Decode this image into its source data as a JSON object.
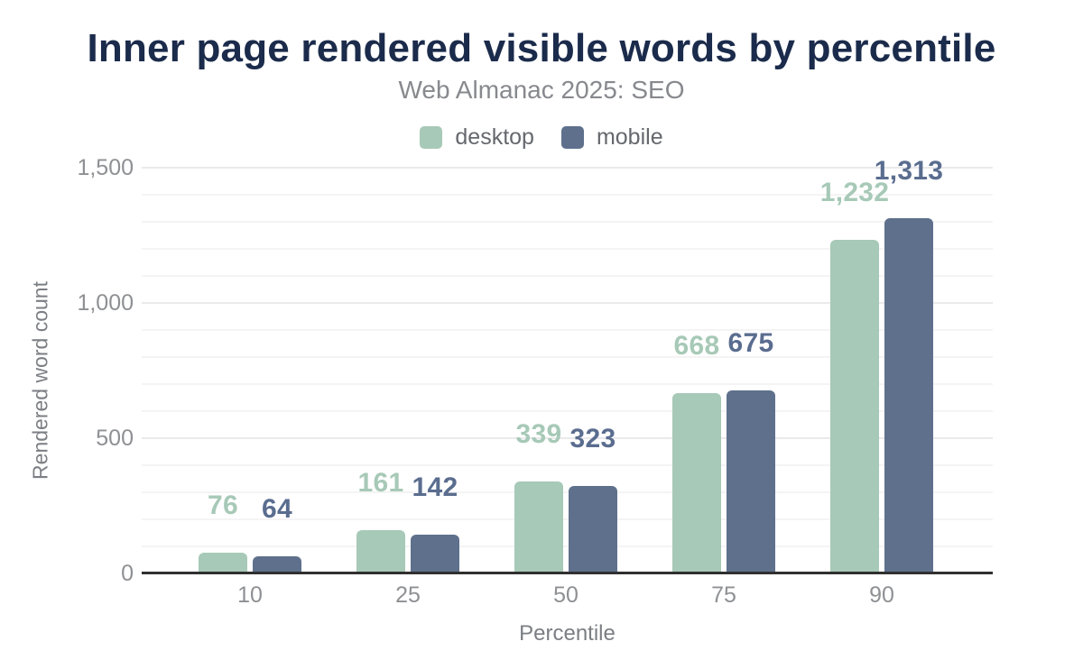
{
  "header": {
    "title": "Inner page rendered visible words by percentile",
    "subtitle": "Web Almanac 2025: SEO"
  },
  "legend": {
    "items": [
      {
        "label": "desktop",
        "color": "#a7c9b7"
      },
      {
        "label": "mobile",
        "color": "#5e708c"
      }
    ]
  },
  "chart_data": {
    "type": "bar",
    "title": "Inner page rendered visible words by percentile",
    "subtitle": "Web Almanac 2025: SEO",
    "categories": [
      "10",
      "25",
      "50",
      "75",
      "90"
    ],
    "series": [
      {
        "name": "desktop",
        "color": "#a7c9b7",
        "label_color": "#a7c9b7",
        "values": [
          76,
          161,
          339,
          668,
          1232
        ],
        "value_labels": [
          "76",
          "161",
          "339",
          "668",
          "1,232"
        ]
      },
      {
        "name": "mobile",
        "color": "#5e708c",
        "label_color": "#5a6d8f",
        "values": [
          64,
          142,
          323,
          675,
          1313
        ],
        "value_labels": [
          "64",
          "142",
          "323",
          "675",
          "1,313"
        ]
      }
    ],
    "xlabel": "Percentile",
    "ylabel": "Rendered word count",
    "ylim": [
      0,
      1500
    ],
    "yticks": [
      {
        "value": 0,
        "label": "0"
      },
      {
        "value": 500,
        "label": "500"
      },
      {
        "value": 1000,
        "label": "1,000"
      },
      {
        "value": 1500,
        "label": "1,500"
      }
    ],
    "grid": {
      "horizontal": true,
      "minor_step": 100,
      "major_step": 500
    },
    "legend_position": "top",
    "colors": {
      "title": "#1b2b4b",
      "subtitle": "#87898e",
      "legend_text": "#65686d",
      "tick_label": "#8e9093",
      "axis_title": "#7b7e83",
      "axis_line": "#303030",
      "gridline_minor": "#f4f4f5",
      "gridline_major": "#eaeaec",
      "background": "#ffffff"
    }
  }
}
